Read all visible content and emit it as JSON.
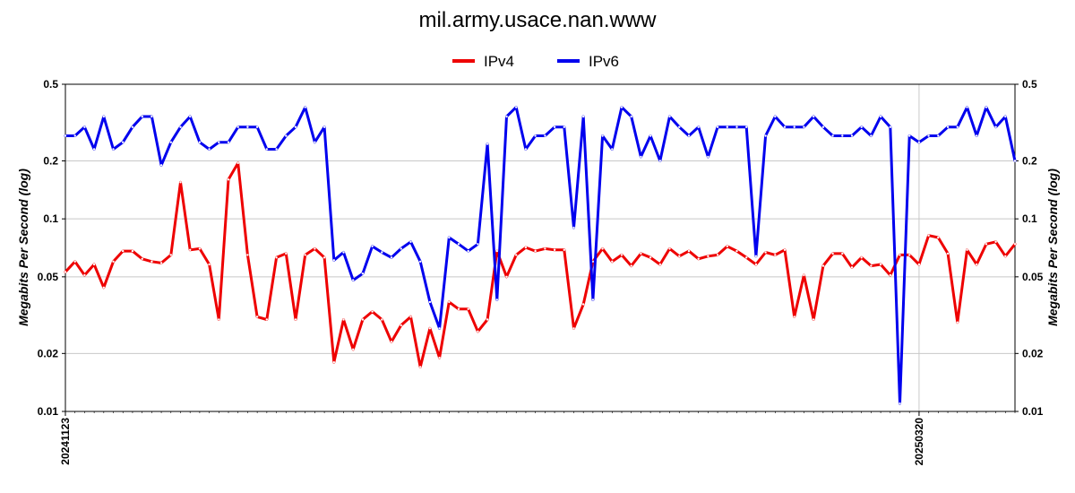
{
  "chart_data": {
    "type": "line",
    "title": "mil.army.usace.nan.www",
    "ylabel": "Megabits Per Second (log)",
    "yscale": "log",
    "ylim": [
      0.01,
      0.5
    ],
    "yticks": [
      0.5,
      0.2,
      0.1,
      0.05,
      0.02,
      0.01
    ],
    "ytick_labels": [
      "0.5",
      "0.2",
      "0.1",
      "0.05",
      "0.02",
      "0.01"
    ],
    "x_tick_labels": [
      "20241123",
      "20250320"
    ],
    "x_tick_indices": [
      0,
      89
    ],
    "grid": true,
    "legend_position": "top-center",
    "series": [
      {
        "name": "IPv4",
        "color": "#ee0000",
        "values": [
          0.053,
          0.06,
          0.051,
          0.058,
          0.044,
          0.06,
          0.068,
          0.068,
          0.062,
          0.06,
          0.059,
          0.065,
          0.155,
          0.069,
          0.07,
          0.058,
          0.03,
          0.16,
          0.195,
          0.065,
          0.031,
          0.03,
          0.063,
          0.066,
          0.03,
          0.065,
          0.07,
          0.063,
          0.018,
          0.03,
          0.021,
          0.03,
          0.033,
          0.03,
          0.023,
          0.028,
          0.031,
          0.017,
          0.027,
          0.019,
          0.037,
          0.034,
          0.034,
          0.026,
          0.03,
          0.068,
          0.05,
          0.065,
          0.071,
          0.068,
          0.07,
          0.069,
          0.069,
          0.027,
          0.036,
          0.06,
          0.07,
          0.06,
          0.065,
          0.057,
          0.066,
          0.063,
          0.058,
          0.07,
          0.064,
          0.068,
          0.062,
          0.064,
          0.065,
          0.072,
          0.068,
          0.063,
          0.058,
          0.067,
          0.065,
          0.069,
          0.031,
          0.051,
          0.03,
          0.057,
          0.066,
          0.066,
          0.056,
          0.063,
          0.057,
          0.058,
          0.051,
          0.065,
          0.065,
          0.058,
          0.082,
          0.08,
          0.066,
          0.029,
          0.069,
          0.058,
          0.074,
          0.076,
          0.064,
          0.074
        ]
      },
      {
        "name": "IPv6",
        "color": "#0000ee",
        "values": [
          0.27,
          0.27,
          0.3,
          0.23,
          0.34,
          0.23,
          0.25,
          0.3,
          0.34,
          0.34,
          0.19,
          0.25,
          0.3,
          0.34,
          0.25,
          0.23,
          0.25,
          0.25,
          0.3,
          0.3,
          0.3,
          0.23,
          0.23,
          0.27,
          0.3,
          0.38,
          0.25,
          0.3,
          0.061,
          0.067,
          0.048,
          0.052,
          0.072,
          0.067,
          0.063,
          0.07,
          0.076,
          0.06,
          0.037,
          0.027,
          0.08,
          0.074,
          0.068,
          0.074,
          0.245,
          0.038,
          0.34,
          0.38,
          0.23,
          0.27,
          0.27,
          0.3,
          0.3,
          0.09,
          0.34,
          0.038,
          0.27,
          0.23,
          0.38,
          0.34,
          0.21,
          0.27,
          0.2,
          0.34,
          0.3,
          0.27,
          0.3,
          0.21,
          0.3,
          0.3,
          0.3,
          0.3,
          0.064,
          0.27,
          0.34,
          0.3,
          0.3,
          0.3,
          0.34,
          0.3,
          0.27,
          0.27,
          0.27,
          0.3,
          0.27,
          0.34,
          0.3,
          0.011,
          0.27,
          0.25,
          0.27,
          0.27,
          0.3,
          0.3,
          0.38,
          0.27,
          0.38,
          0.3,
          0.34,
          0.2
        ]
      }
    ]
  }
}
